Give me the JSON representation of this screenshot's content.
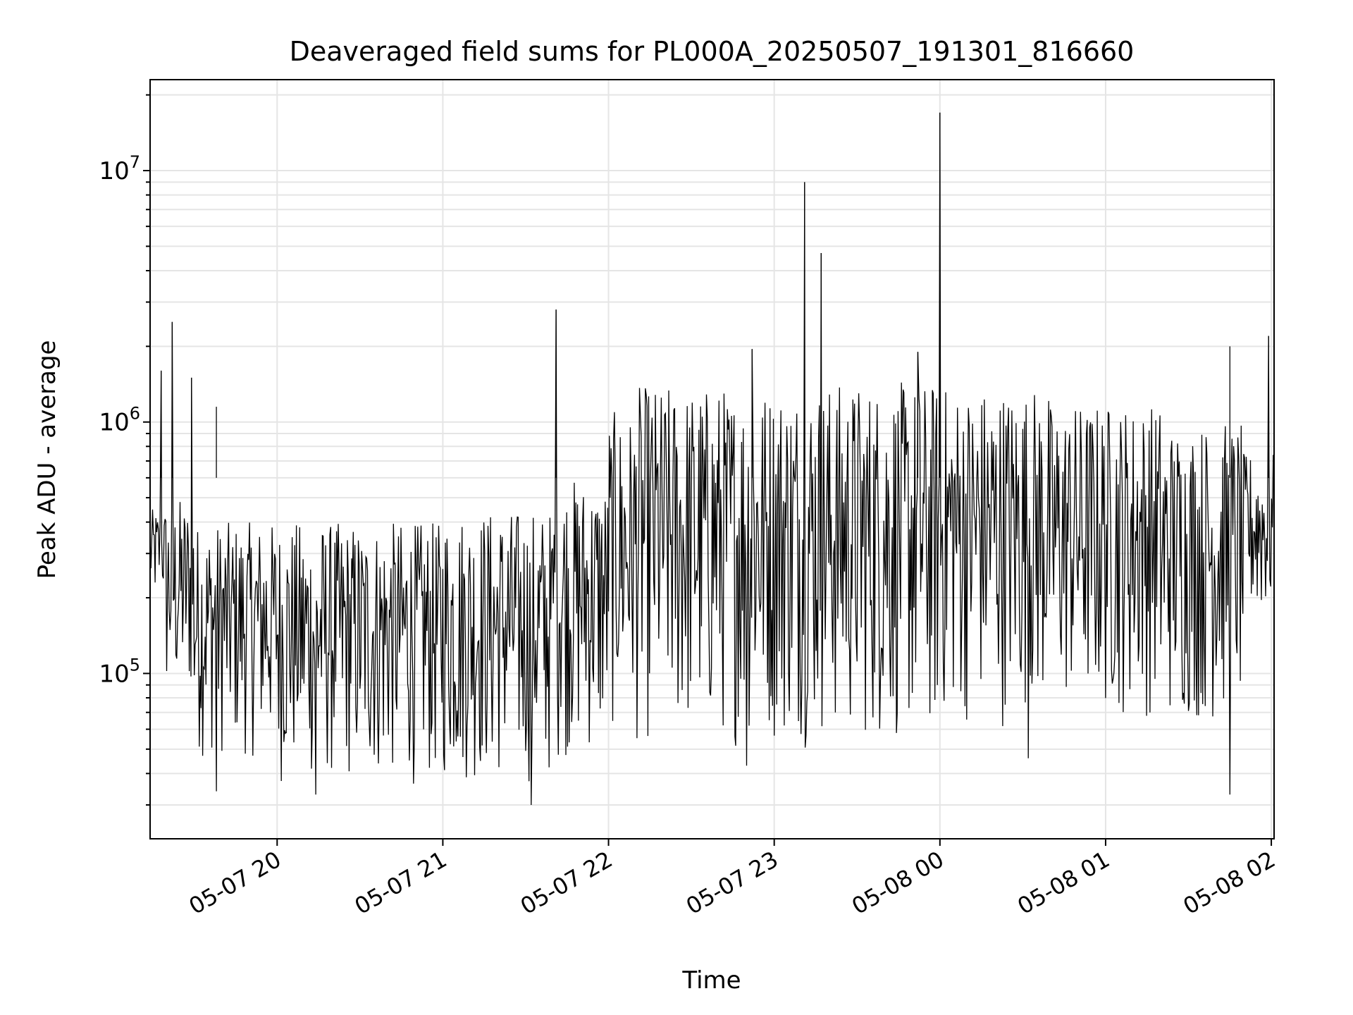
{
  "chart_data": {
    "type": "line",
    "title": "Deaveraged field sums for PL000A_20250507_191301_816660",
    "xlabel": "Time",
    "ylabel": "Peak ADU - average",
    "yscale": "log",
    "grid": true,
    "legend": "none",
    "colors": {
      "line": "#000000",
      "grid": "#e5e5e5",
      "axes": "#000000"
    },
    "xlim": [
      "2025-05-07 19:14",
      "2025-05-08 02:01"
    ],
    "ylim": [
      22000,
      23000000
    ],
    "x_ticks": [
      {
        "at": "2025-05-07 20:00",
        "label": "05-07 20"
      },
      {
        "at": "2025-05-07 21:00",
        "label": "05-07 21"
      },
      {
        "at": "2025-05-07 22:00",
        "label": "05-07 22"
      },
      {
        "at": "2025-05-07 23:00",
        "label": "05-07 23"
      },
      {
        "at": "2025-05-08 00:00",
        "label": "05-08 00"
      },
      {
        "at": "2025-05-08 01:00",
        "label": "05-08 01"
      },
      {
        "at": "2025-05-08 02:00",
        "label": "05-08 02"
      }
    ],
    "y_ticks": [
      {
        "value": 100000,
        "base": "10",
        "exp": "5"
      },
      {
        "value": 1000000,
        "base": "10",
        "exp": "6"
      },
      {
        "value": 10000000,
        "base": "10",
        "exp": "7"
      }
    ],
    "spikes": [
      {
        "x": "2025-05-07 19:22",
        "y": 2500000
      },
      {
        "x": "2025-05-07 19:18",
        "y": 1600000
      },
      {
        "x": "2025-05-07 19:29",
        "y": 1500000
      },
      {
        "x": "2025-05-07 19:38",
        "y": 1150000
      },
      {
        "x": "2025-05-07 21:41",
        "y": 2800000
      },
      {
        "x": "2025-05-07 22:52",
        "y": 1950000
      },
      {
        "x": "2025-05-07 23:11",
        "y": 9000000
      },
      {
        "x": "2025-05-07 23:17",
        "y": 4700000
      },
      {
        "x": "2025-05-07 23:52",
        "y": 1900000
      },
      {
        "x": "2025-05-08 00:00",
        "y": 17000000
      },
      {
        "x": "2025-05-08 01:45",
        "y": 2000000
      },
      {
        "x": "2025-05-08 01:59",
        "y": 2200000
      }
    ],
    "series": [
      {
        "segments": [
          {
            "from": "2025-05-07 19:14",
            "to": "2025-05-07 19:20",
            "low": 180000,
            "high": 450000
          },
          {
            "from": "2025-05-07 19:20",
            "to": "2025-05-07 19:30",
            "low": 70000,
            "high": 500000
          },
          {
            "from": "2025-05-07 19:30",
            "to": "2025-05-07 20:00",
            "low": 45000,
            "high": 400000
          },
          {
            "from": "2025-05-07 20:00",
            "to": "2025-05-07 21:00",
            "low": 35000,
            "high": 400000
          },
          {
            "from": "2025-05-07 21:00",
            "to": "2025-05-07 21:40",
            "low": 35000,
            "high": 450000
          },
          {
            "from": "2025-05-07 21:40",
            "to": "2025-05-07 22:00",
            "low": 45000,
            "high": 600000
          },
          {
            "from": "2025-05-07 22:00",
            "to": "2025-05-07 22:10",
            "low": 55000,
            "high": 1100000
          },
          {
            "from": "2025-05-07 22:10",
            "to": "2025-05-07 23:00",
            "low": 50000,
            "high": 1400000
          },
          {
            "from": "2025-05-07 23:00",
            "to": "2025-05-08 00:00",
            "low": 50000,
            "high": 1450000
          },
          {
            "from": "2025-05-08 00:00",
            "to": "2025-05-08 00:40",
            "low": 60000,
            "high": 1400000
          },
          {
            "from": "2025-05-08 00:40",
            "to": "2025-05-08 01:20",
            "low": 65000,
            "high": 1200000
          },
          {
            "from": "2025-05-08 01:20",
            "to": "2025-05-08 01:50",
            "low": 60000,
            "high": 1000000
          },
          {
            "from": "2025-05-08 01:50",
            "to": "2025-05-08 02:01",
            "low": 150000,
            "high": 750000
          }
        ],
        "dips": [
          {
            "x": "2025-05-07 19:38",
            "y": 34000
          },
          {
            "x": "2025-05-07 20:14",
            "y": 33000
          },
          {
            "x": "2025-05-07 21:32",
            "y": 30000
          },
          {
            "x": "2025-05-07 22:50",
            "y": 43000
          },
          {
            "x": "2025-05-08 00:32",
            "y": 46000
          },
          {
            "x": "2025-05-08 01:45",
            "y": 33000
          }
        ]
      }
    ]
  }
}
